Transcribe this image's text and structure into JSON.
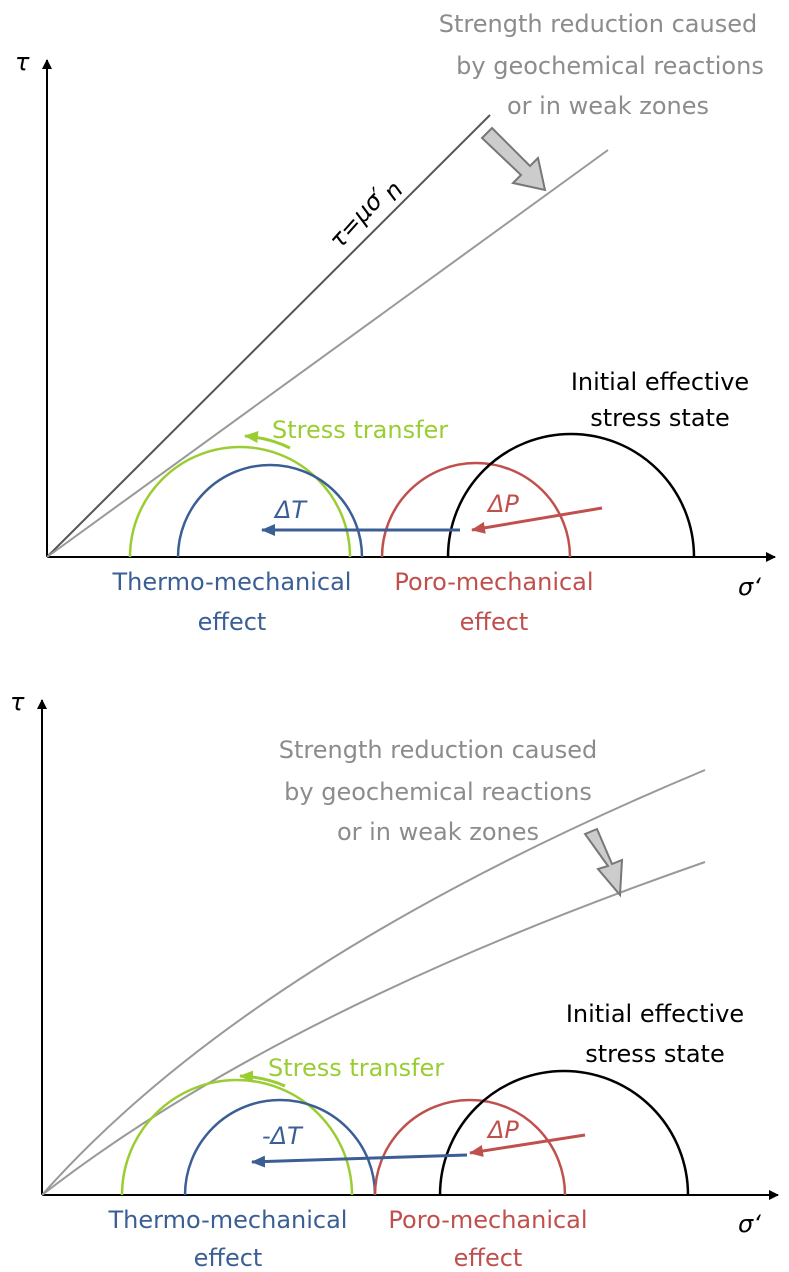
{
  "panels": [
    {
      "y_axis": "τ",
      "x_axis": "σ‘",
      "failure_label": "τ=μσ′",
      "failure_label_sub": "n",
      "strength_note": [
        "Strength reduction caused",
        "by geochemical reactions",
        "or in weak zones"
      ],
      "initial_label": [
        "Initial effective",
        "stress state"
      ],
      "stress_transfer": "Stress transfer",
      "delta_t": "ΔT",
      "delta_p": "ΔP",
      "thermo_label": [
        "Thermo-mechanical",
        "effect"
      ],
      "poro_label": [
        "Poro-mechanical",
        "effect"
      ]
    },
    {
      "y_axis": "τ",
      "x_axis": "σ‘",
      "strength_note": [
        "Strength reduction caused",
        "by geochemical reactions",
        "or in weak zones"
      ],
      "initial_label": [
        "Initial effective",
        "stress state"
      ],
      "stress_transfer": "Stress transfer",
      "delta_t": "-ΔT",
      "delta_p": "ΔP",
      "thermo_label": [
        "Thermo-mechanical",
        "effect"
      ],
      "poro_label": [
        "Poro-mechanical",
        "effect"
      ]
    }
  ]
}
